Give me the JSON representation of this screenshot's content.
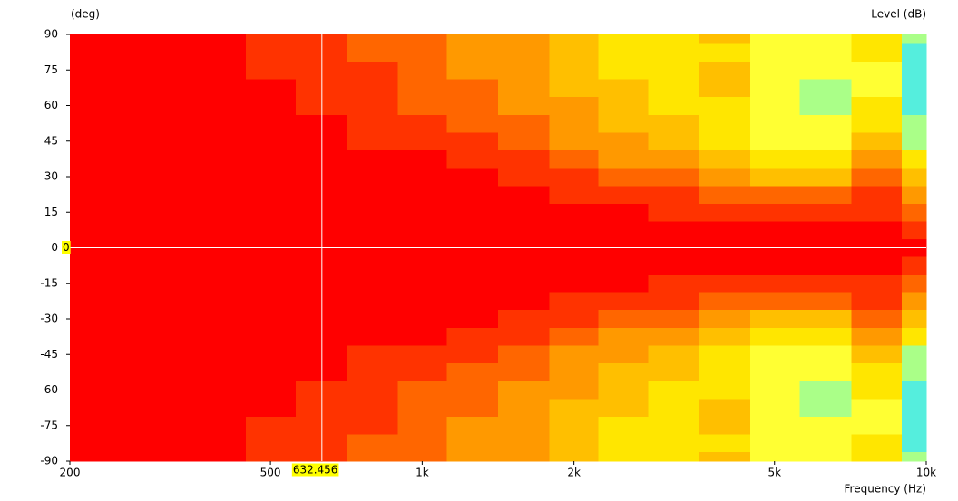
{
  "chart_data": {
    "type": "contour",
    "y_axis_label": "(deg)",
    "colorbar_label": "Level (dB)",
    "x_axis_label": "Frequency (Hz)",
    "log_x": true,
    "xlim": [
      200,
      10000
    ],
    "ylim": [
      -90,
      90
    ],
    "xticks": [
      200,
      500,
      {
        "value": 1000,
        "label": "1k"
      },
      {
        "value": 2000,
        "label": "2k"
      },
      {
        "value": 5000,
        "label": "5k"
      },
      {
        "value": 10000,
        "label": "10k"
      }
    ],
    "yticks": [
      90,
      75,
      60,
      45,
      30,
      15,
      0,
      -15,
      -30,
      -45,
      -60,
      -75,
      -90
    ],
    "x": [
      200,
      250,
      315,
      400,
      500,
      630,
      800,
      1000,
      1250,
      1600,
      2000,
      2500,
      3150,
      4000,
      5000,
      6300,
      8000,
      10000
    ],
    "angles": [
      0,
      7.5,
      15,
      22.5,
      30,
      37.5,
      45,
      52.5,
      60,
      67.5,
      75,
      82.5,
      90
    ],
    "mirrored": true,
    "z": [
      [
        0,
        0,
        0,
        0,
        0,
        0,
        0,
        0,
        0,
        0,
        0,
        0,
        0,
        0,
        0,
        0,
        0,
        0
      ],
      [
        0,
        0,
        0,
        0,
        0,
        0,
        0,
        0,
        0,
        0,
        -1,
        -1,
        -1,
        -1,
        -1,
        -1.5,
        -2,
        -3.5
      ],
      [
        -1,
        -1,
        -1,
        -1,
        -1,
        -1,
        -1,
        -1,
        -1,
        -1,
        -2,
        -3,
        -3.5,
        -4,
        -4.5,
        -5,
        -4,
        -8
      ],
      [
        -1,
        -1,
        -1,
        -1,
        -1,
        -1,
        -1,
        -1,
        -2,
        -3,
        -4,
        -5,
        -6,
        -7,
        -8,
        -9,
        -6,
        -11
      ],
      [
        -1,
        -1,
        -1,
        -1,
        -1,
        -1,
        -1,
        -2,
        -3,
        -4.5,
        -6,
        -7.5,
        -9,
        -11,
        -13,
        -13,
        -9,
        -14
      ],
      [
        -1,
        -1,
        -1,
        -1,
        -1,
        -1,
        -2,
        -3,
        -4.5,
        -6,
        -8,
        -10,
        -12,
        -14,
        -16,
        -16,
        -12,
        -17
      ],
      [
        -1,
        -1,
        -1,
        -1,
        -1,
        -2,
        -3.5,
        -4.5,
        -6,
        -8,
        -10,
        -12,
        -14,
        -16,
        -19,
        -19,
        -14,
        -22
      ],
      [
        -1,
        -1,
        -1,
        -1,
        -1.5,
        -2.5,
        -4,
        -5.5,
        -7,
        -9,
        -11,
        -13,
        -15,
        -17,
        -20,
        -21,
        -17,
        -24
      ],
      [
        -1,
        -1,
        -1,
        -1.5,
        -2,
        -3.5,
        -5,
        -6.5,
        -8,
        -10,
        -12,
        -14,
        -16,
        -17,
        -21,
        -22,
        -18,
        -25
      ],
      [
        -1,
        -1,
        -1,
        -1,
        -2.5,
        -4,
        -5.5,
        -7,
        -9,
        -11,
        -13,
        -15,
        -16,
        -15,
        -20,
        -22,
        -19,
        -26
      ],
      [
        -1.5,
        -1.5,
        -1.5,
        -2,
        -3.5,
        -4.5,
        -6,
        -7.5,
        -9.5,
        -11.5,
        -14,
        -16,
        -17,
        -15,
        -20,
        -21,
        -19,
        -26
      ],
      [
        -2,
        -2,
        -2,
        -2.5,
        -4,
        -5,
        -6.5,
        -8,
        -10,
        -12,
        -14.5,
        -16,
        -17,
        -16,
        -19,
        -20,
        -18,
        -25
      ],
      [
        -2,
        -2,
        -2,
        -3,
        -4,
        -5,
        -7,
        -8,
        -10,
        -12,
        -15,
        -16,
        -16,
        -15,
        -19,
        -20,
        -18,
        -24
      ]
    ],
    "levels": [
      -3,
      -6,
      -9,
      -12,
      -15,
      -18,
      -21,
      -24
    ],
    "colors": [
      "#ff0000",
      "#ff3300",
      "#ff6600",
      "#ff9900",
      "#ffbf00",
      "#ffe600",
      "#ffff33",
      "#aaff88",
      "#55eedd"
    ],
    "cursor": {
      "x": 632.456,
      "y": 0,
      "x_label": "632.456",
      "y_label": "0"
    }
  }
}
